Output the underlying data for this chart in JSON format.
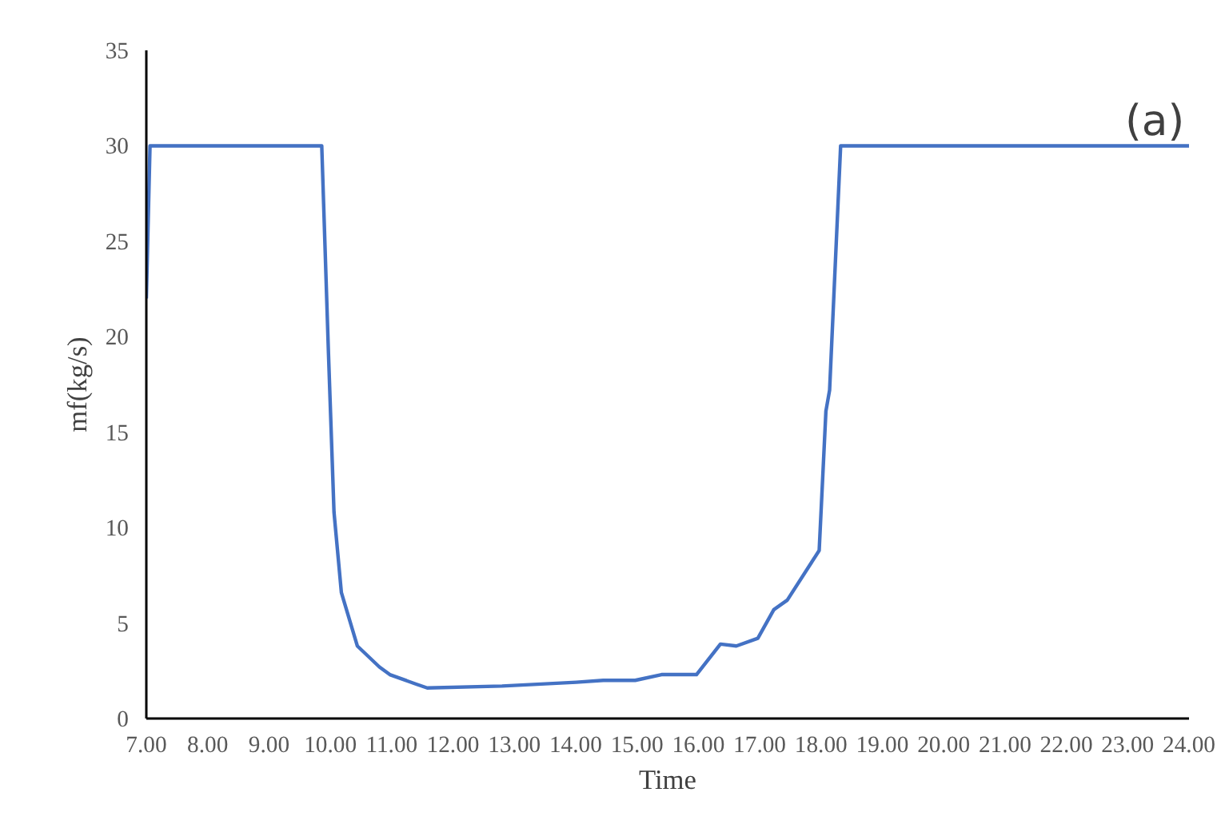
{
  "chart_data": {
    "type": "line",
    "xlabel": "Time",
    "ylabel": "mf(kg/s)",
    "annotations": [
      "(a)"
    ],
    "x": [
      7.0,
      7.06,
      9.86,
      9.97,
      10.06,
      10.18,
      10.44,
      10.8,
      10.97,
      11.4,
      11.58,
      12.8,
      14.01,
      14.45,
      14.97,
      15.4,
      15.97,
      16.36,
      16.62,
      16.97,
      17.23,
      17.45,
      17.97,
      18.08,
      18.14,
      18.32,
      24.0
    ],
    "series": [
      {
        "color": "#4472c4",
        "values": [
          22.0,
          30,
          30,
          19.1,
          10.8,
          6.6,
          3.8,
          2.7,
          2.3,
          1.8,
          1.6,
          1.7,
          1.9,
          2.0,
          2.0,
          2.3,
          2.3,
          3.9,
          3.8,
          4.2,
          5.7,
          6.2,
          8.8,
          16.1,
          17.2,
          30,
          30
        ]
      }
    ],
    "xlim": [
      7,
      24
    ],
    "ylim": [
      0,
      35
    ],
    "xticks": [
      {
        "value": 7,
        "label": "7.00"
      },
      {
        "value": 8,
        "label": "8.00"
      },
      {
        "value": 9,
        "label": "9.00"
      },
      {
        "value": 10,
        "label": "10.00"
      },
      {
        "value": 11,
        "label": "11.00"
      },
      {
        "value": 12,
        "label": "12.00"
      },
      {
        "value": 13,
        "label": "13.00"
      },
      {
        "value": 14,
        "label": "14.00"
      },
      {
        "value": 15,
        "label": "15.00"
      },
      {
        "value": 16,
        "label": "16.00"
      },
      {
        "value": 17,
        "label": "17.00"
      },
      {
        "value": 18,
        "label": "18.00"
      },
      {
        "value": 19,
        "label": "19.00"
      },
      {
        "value": 20,
        "label": "20.00"
      },
      {
        "value": 21,
        "label": "21.00"
      },
      {
        "value": 22,
        "label": "22.00"
      },
      {
        "value": 23,
        "label": "23.00"
      },
      {
        "value": 24,
        "label": "24.00"
      }
    ],
    "yticks": [
      0,
      5,
      10,
      15,
      20,
      25,
      30,
      35
    ],
    "grid": false,
    "marker": "none",
    "line_style": "solid"
  }
}
